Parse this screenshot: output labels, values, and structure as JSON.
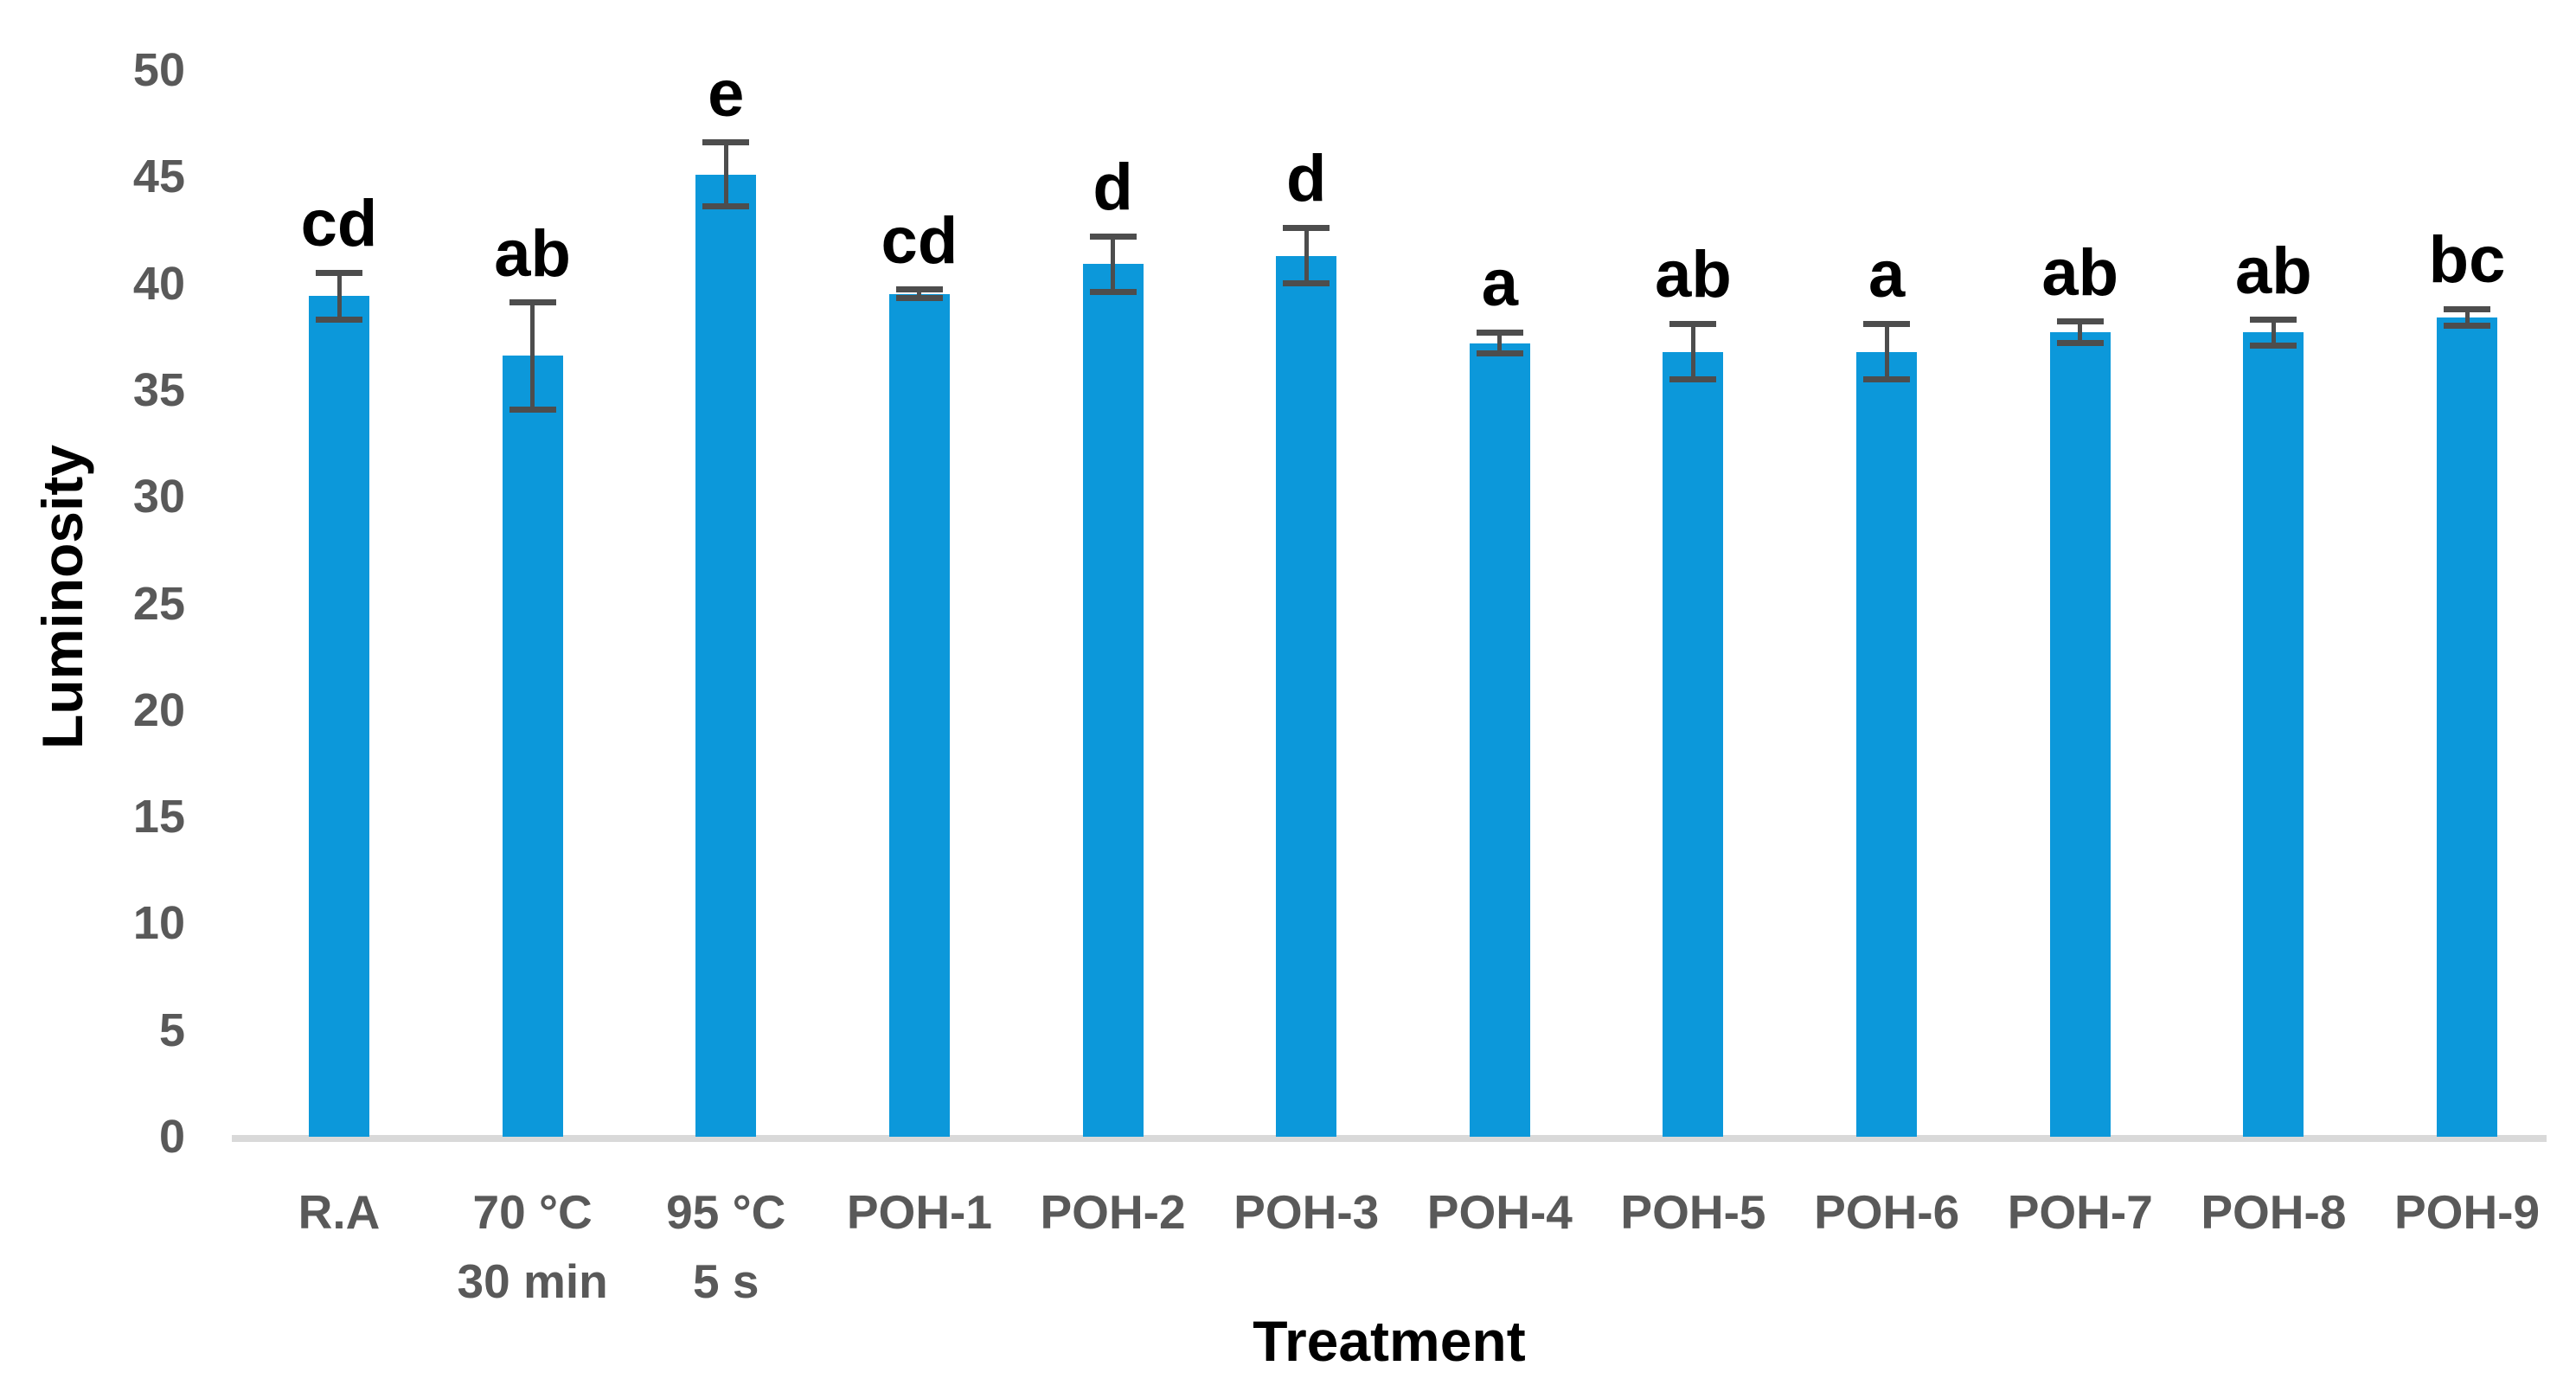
{
  "chart_data": {
    "type": "bar",
    "title": "",
    "xlabel": "Treatment",
    "ylabel": "Luminosity",
    "ylim": [
      0,
      50
    ],
    "ytick_step": 5,
    "ytick_labels": [
      "0",
      "5",
      "10",
      "15",
      "20",
      "25",
      "30",
      "35",
      "40",
      "45",
      "50"
    ],
    "grid": false,
    "legend": "none",
    "bar_color": "#0c98da",
    "error_bar_color": "#4d4d4d",
    "axis_line_color": "#d9d9d9",
    "tick_label_color": "#595959",
    "categories": [
      {
        "label": "R.A",
        "sublabel": ""
      },
      {
        "label": "70 °C",
        "sublabel": "30 min"
      },
      {
        "label": "95 °C",
        "sublabel": "5 s"
      },
      {
        "label": "POH-1",
        "sublabel": ""
      },
      {
        "label": "POH-2",
        "sublabel": ""
      },
      {
        "label": "POH-3",
        "sublabel": ""
      },
      {
        "label": "POH-4",
        "sublabel": ""
      },
      {
        "label": "POH-5",
        "sublabel": ""
      },
      {
        "label": "POH-6",
        "sublabel": ""
      },
      {
        "label": "POH-7",
        "sublabel": ""
      },
      {
        "label": "POH-8",
        "sublabel": ""
      },
      {
        "label": "POH-9",
        "sublabel": ""
      }
    ],
    "series": [
      {
        "name": "Luminosity",
        "values": [
          39.4,
          36.6,
          45.1,
          39.5,
          40.9,
          41.3,
          37.2,
          36.8,
          36.8,
          37.7,
          37.7,
          38.4
        ],
        "errors": [
          1.1,
          2.5,
          1.5,
          0.2,
          1.3,
          1.3,
          0.5,
          1.3,
          1.3,
          0.5,
          0.6,
          0.4
        ],
        "significance_letters": [
          "cd",
          "ab",
          "e",
          "cd",
          "d",
          "d",
          "a",
          "ab",
          "a",
          "ab",
          "ab",
          "bc"
        ]
      }
    ]
  }
}
